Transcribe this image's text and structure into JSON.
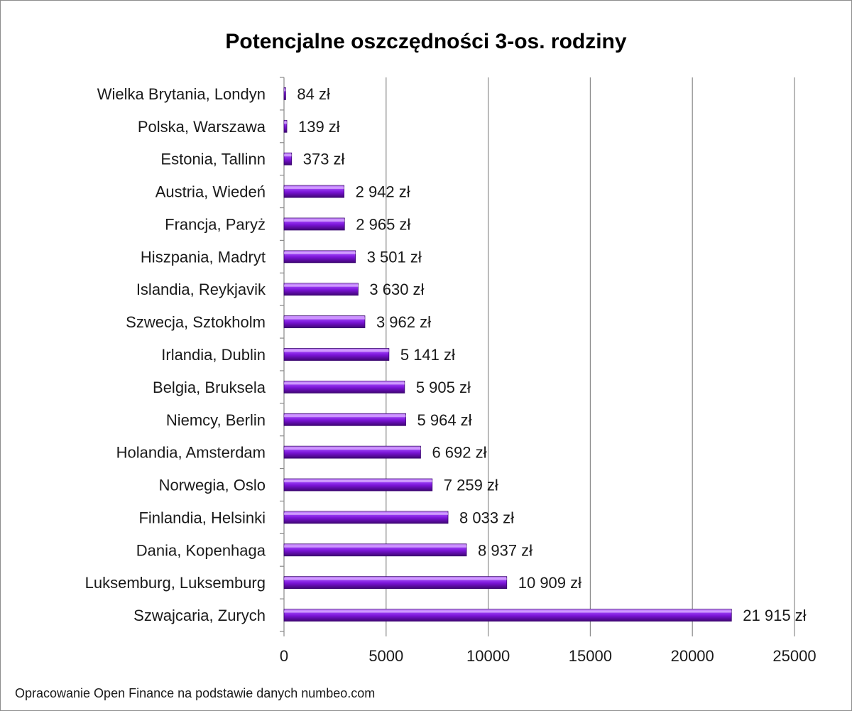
{
  "chart_data": {
    "type": "bar",
    "orientation": "horizontal",
    "title": "Potencjalne oszczędności 3-os. rodziny",
    "categories": [
      "Wielka Brytania, Londyn",
      "Polska, Warszawa",
      "Estonia, Tallinn",
      "Austria, Wiedeń",
      "Francja, Paryż",
      "Hiszpania, Madryt",
      "Islandia, Reykjavik",
      "Szwecja, Sztokholm",
      "Irlandia, Dublin",
      "Belgia, Bruksela",
      "Niemcy, Berlin",
      "Holandia, Amsterdam",
      "Norwegia, Oslo",
      "Finlandia, Helsinki",
      "Dania, Kopenhaga",
      "Luksemburg, Luksemburg",
      "Szwajcaria, Zurych"
    ],
    "values": [
      84,
      139,
      373,
      2942,
      2965,
      3501,
      3630,
      3962,
      5141,
      5905,
      5964,
      6692,
      7259,
      8033,
      8937,
      10909,
      21915
    ],
    "value_labels": [
      "84 zł",
      "139 zł",
      "373 zł",
      "2 942 zł",
      "2 965 zł",
      "3 501 zł",
      "3 630 zł",
      "3 962 zł",
      "5 141 zł",
      "5 905 zł",
      "5 964 zł",
      "6 692 zł",
      "7 259 zł",
      "8 033 zł",
      "8 937 zł",
      "10 909 zł",
      "21 915 zł"
    ],
    "xlim": [
      0,
      25000
    ],
    "xticks": [
      "0",
      "5000",
      "10000",
      "15000",
      "20000",
      "25000"
    ],
    "xlabel": "",
    "ylabel": "",
    "grid": "vertical",
    "legend": "none",
    "bar_color": "#7b1fc8",
    "source": "Opracowanie Open Finance na podstawie danych numbeo.com"
  }
}
